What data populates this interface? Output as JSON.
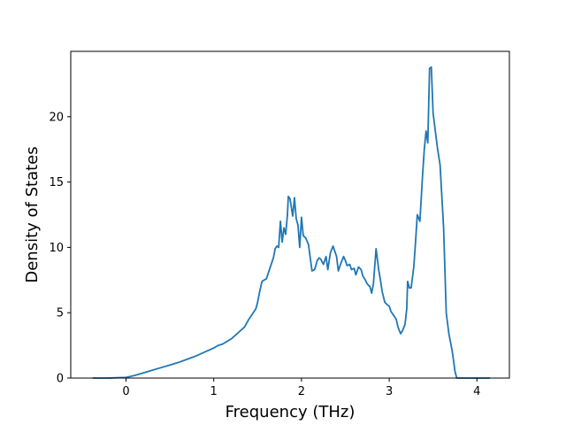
{
  "chart_data": {
    "type": "line",
    "xlabel": "Frequency (THz)",
    "ylabel": "Density of States",
    "xlim": [
      -0.63,
      4.37
    ],
    "ylim": [
      0,
      25.0
    ],
    "x_ticks": [
      0,
      1,
      2,
      3,
      4
    ],
    "y_ticks": [
      0,
      5,
      10,
      15,
      20
    ],
    "x_tick_labels": [
      "0",
      "1",
      "2",
      "3",
      "4"
    ],
    "y_tick_labels": [
      "0",
      "5",
      "10",
      "15",
      "20"
    ],
    "grid": false,
    "legend": "none",
    "line_color": "#1f77b4",
    "series": [
      {
        "x": [
          -0.38,
          -0.2,
          0.0,
          0.1,
          0.2,
          0.3,
          0.4,
          0.5,
          0.6,
          0.7,
          0.8,
          0.9,
          1.0,
          1.05,
          1.1,
          1.15,
          1.2,
          1.25,
          1.3,
          1.35,
          1.4,
          1.45,
          1.48,
          1.5,
          1.52,
          1.55,
          1.6,
          1.62,
          1.65,
          1.68,
          1.7,
          1.72,
          1.74,
          1.76,
          1.78,
          1.8,
          1.82,
          1.84,
          1.85,
          1.87,
          1.9,
          1.92,
          1.94,
          1.96,
          1.98,
          2.0,
          2.02,
          2.05,
          2.08,
          2.1,
          2.12,
          2.15,
          2.18,
          2.2,
          2.22,
          2.25,
          2.28,
          2.3,
          2.33,
          2.36,
          2.4,
          2.42,
          2.45,
          2.48,
          2.5,
          2.52,
          2.55,
          2.57,
          2.6,
          2.62,
          2.65,
          2.68,
          2.7,
          2.72,
          2.75,
          2.78,
          2.8,
          2.82,
          2.85,
          2.88,
          2.9,
          2.92,
          2.95,
          2.98,
          3.0,
          3.02,
          3.05,
          3.08,
          3.1,
          3.13,
          3.15,
          3.18,
          3.2,
          3.21,
          3.23,
          3.25,
          3.28,
          3.3,
          3.32,
          3.35,
          3.38,
          3.4,
          3.42,
          3.44,
          3.46,
          3.48,
          3.5,
          3.52,
          3.55,
          3.58,
          3.62,
          3.65,
          3.68,
          3.72,
          3.75,
          3.77,
          3.8,
          3.9,
          4.0,
          4.15
        ],
        "y": [
          0,
          0,
          0.05,
          0.2,
          0.4,
          0.6,
          0.8,
          1.0,
          1.2,
          1.45,
          1.7,
          2.0,
          2.3,
          2.5,
          2.6,
          2.8,
          3.0,
          3.3,
          3.6,
          3.9,
          4.5,
          5.0,
          5.3,
          5.8,
          6.5,
          7.4,
          7.6,
          8.0,
          8.6,
          9.2,
          9.9,
          10.1,
          10.0,
          12.0,
          10.4,
          11.5,
          11.0,
          12.5,
          13.9,
          13.7,
          12.4,
          13.8,
          12.2,
          11.7,
          10.0,
          12.3,
          10.9,
          10.7,
          10.2,
          9.2,
          8.2,
          8.3,
          9.0,
          9.2,
          9.1,
          8.7,
          9.3,
          8.3,
          9.6,
          10.1,
          9.3,
          8.2,
          8.8,
          9.3,
          9.0,
          8.6,
          8.7,
          8.3,
          8.4,
          7.9,
          8.5,
          8.3,
          7.8,
          7.6,
          7.2,
          7.0,
          6.5,
          7.2,
          9.9,
          8.3,
          7.5,
          6.6,
          5.8,
          5.6,
          5.5,
          5.1,
          4.8,
          4.5,
          3.9,
          3.4,
          3.6,
          4.1,
          5.3,
          7.4,
          6.9,
          6.9,
          8.5,
          10.4,
          12.5,
          12.0,
          15.5,
          17.5,
          18.9,
          18.0,
          23.7,
          23.8,
          20.3,
          19.2,
          17.6,
          16.3,
          11.5,
          5.0,
          3.4,
          2.0,
          0.5,
          0,
          0,
          0,
          0,
          0
        ]
      }
    ]
  }
}
